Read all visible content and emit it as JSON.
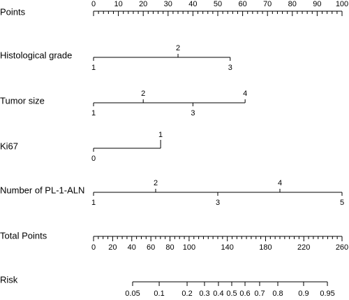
{
  "chart_data": {
    "type": "nomogram",
    "points_axis": {
      "label": "Points",
      "xlim": [
        0,
        100
      ],
      "xticks": [
        0,
        10,
        20,
        30,
        40,
        50,
        60,
        70,
        80,
        90,
        100
      ],
      "minor_ticks": [
        2,
        4,
        6,
        8,
        12,
        14,
        16,
        18,
        22,
        24,
        26,
        28,
        32,
        34,
        36,
        38,
        42,
        44,
        46,
        48,
        52,
        54,
        56,
        58,
        62,
        64,
        66,
        68,
        72,
        74,
        76,
        78,
        82,
        84,
        86,
        88,
        92,
        94,
        96,
        98
      ]
    },
    "variables": [
      {
        "label": "Histological grade",
        "levels": [
          1,
          2,
          3
        ],
        "points": [
          0,
          34,
          55
        ]
      },
      {
        "label": "Tumor size",
        "levels": [
          1,
          2,
          3,
          4
        ],
        "points": [
          0,
          20,
          40,
          61
        ]
      },
      {
        "label": "Ki67",
        "levels": [
          0,
          1
        ],
        "points": [
          0,
          27
        ]
      },
      {
        "label": "Number of PL-1-ALN",
        "levels": [
          1,
          2,
          3,
          4,
          5
        ],
        "points": [
          0,
          25,
          50,
          75,
          100
        ]
      }
    ],
    "total_points_axis": {
      "label": "Total Points",
      "xlim": [
        0,
        260
      ],
      "xticks": [
        0,
        20,
        40,
        60,
        80,
        100,
        140,
        180,
        220,
        260
      ],
      "minor_ticks": [
        5,
        10,
        15,
        25,
        30,
        35,
        45,
        50,
        55,
        65,
        70,
        75,
        85,
        90,
        95,
        105,
        110,
        115,
        120,
        125,
        130,
        135,
        145,
        150,
        155,
        160,
        165,
        170,
        175,
        185,
        190,
        195,
        200,
        205,
        210,
        215,
        225,
        230,
        235,
        240,
        245,
        250,
        255
      ]
    },
    "risk_axis": {
      "label": "Risk",
      "levels": [
        0.05,
        0.1,
        0.2,
        0.3,
        0.4,
        0.5,
        0.6,
        0.7,
        0.8,
        0.9,
        0.95
      ],
      "total_points": [
        40.9,
        68.7,
        97.9,
        116.1,
        130.7,
        144.6,
        158.5,
        173.8,
        192.8,
        219.8,
        244.7
      ]
    }
  }
}
